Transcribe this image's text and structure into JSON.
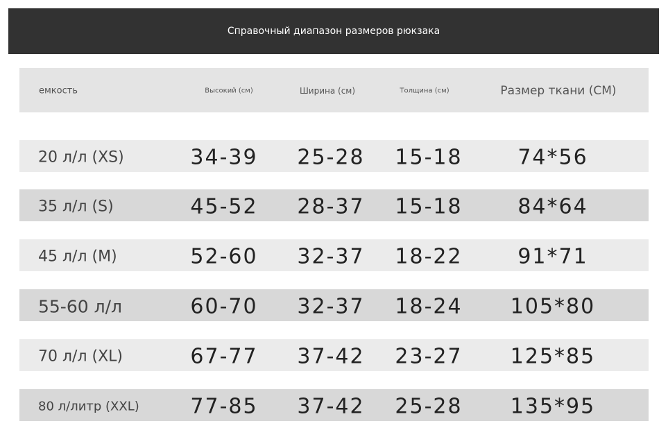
{
  "header": {
    "title": "Справочный диапазон размеров рюкзака"
  },
  "table": {
    "columns": [
      "емкость",
      "Высокий (см)",
      "Ширина (см)",
      "Толщина (см)",
      "Размер ткани (СМ)"
    ],
    "rows": [
      [
        "20 л/л (XS)",
        "34-39",
        "25-28",
        "15-18",
        "74*56"
      ],
      [
        "35 л/л (S)",
        "45-52",
        "28-37",
        "15-18",
        "84*64"
      ],
      [
        "45 л/л (M)",
        "52-60",
        "32-37",
        "18-22",
        "91*71"
      ],
      [
        "55-60 л/л",
        "60-70",
        "32-37",
        "18-24",
        "105*80"
      ],
      [
        "70 л/л (XL)",
        "67-77",
        "37-42",
        "23-27",
        "125*85"
      ],
      [
        "80 л/литр (XXL)",
        "77-85",
        "37-42",
        "25-28",
        "135*95"
      ]
    ]
  }
}
